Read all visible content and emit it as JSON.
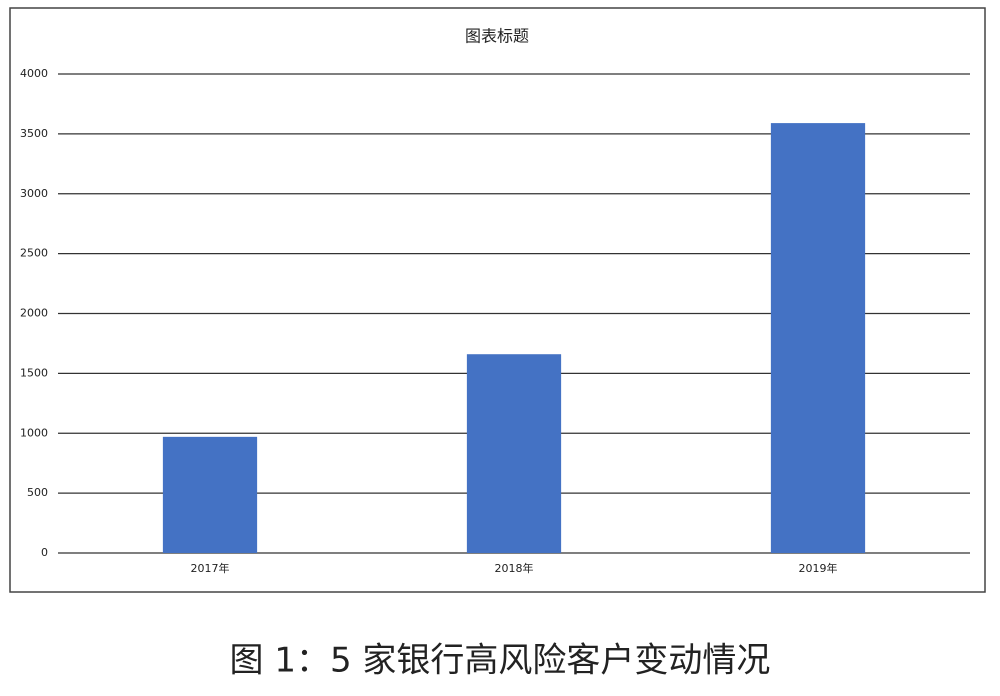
{
  "chart_data": {
    "type": "bar",
    "title": "图表标题",
    "categories": [
      "2017年",
      "2018年",
      "2019年"
    ],
    "values": [
      970,
      1660,
      3590
    ],
    "color": "#4472c4",
    "ylim": [
      0,
      4000
    ],
    "yticks": [
      0,
      500,
      1000,
      1500,
      2000,
      2500,
      3000,
      3500,
      4000
    ],
    "grid": true,
    "caption": "图 1：5 家银行高风险客户变动情况"
  }
}
